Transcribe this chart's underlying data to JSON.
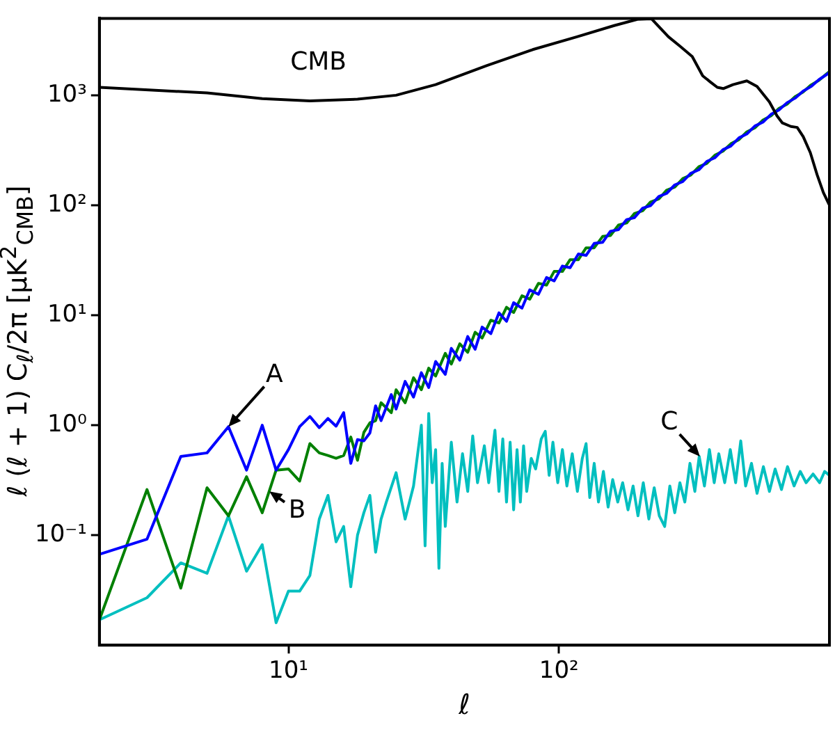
{
  "chart_data": {
    "type": "line",
    "xlabel": "ℓ",
    "ylabel": "ℓ (ℓ + 1) C$_{ℓ}$/2π [μK$^{2}$$_{CMB}$]",
    "xlim": [
      2,
      1000
    ],
    "ylim": [
      0.01,
      5000
    ],
    "xticks": [
      {
        "value": 10,
        "label": "10¹"
      },
      {
        "value": 100,
        "label": "10²"
      }
    ],
    "yticks": [
      {
        "value": 0.1,
        "label": "10⁻¹"
      },
      {
        "value": 1,
        "label": "10⁰"
      },
      {
        "value": 10,
        "label": "10¹"
      },
      {
        "value": 100,
        "label": "10²"
      },
      {
        "value": 1000,
        "label": "10³"
      }
    ],
    "log": "xy",
    "grid": false,
    "legend": false,
    "marker": "none",
    "line_style": "solid",
    "annotations": [
      "CMB",
      {
        "text": "A",
        "x": 6,
        "y": 0.97
      },
      {
        "text": "B",
        "x": 8.5,
        "y": 0.25
      },
      {
        "text": "C",
        "x": 332,
        "y": 0.52
      }
    ],
    "series": [
      {
        "color": "#000000",
        "x": [
          2,
          5,
          8,
          12,
          18,
          25,
          35,
          54,
          80,
          116,
          160,
          195,
          220,
          254,
          280,
          311,
          340,
          363,
          385,
          405,
          440,
          495,
          540,
          600,
          640,
          670,
          720,
          760,
          800,
          850,
          900,
          950,
          1000
        ],
        "values": [
          1180,
          1050,
          930,
          890,
          920,
          1000,
          1250,
          1860,
          2600,
          3390,
          4300,
          4900,
          4950,
          3400,
          2800,
          2250,
          1500,
          1320,
          1180,
          1150,
          1250,
          1350,
          1200,
          870,
          650,
          560,
          520,
          510,
          420,
          300,
          190,
          130,
          100
        ]
      },
      {
        "color": "#0000ff",
        "x": [
          2,
          3,
          4,
          5,
          6,
          7,
          8,
          9,
          10,
          11,
          12,
          13,
          14,
          15,
          16,
          17,
          18,
          19,
          20,
          21,
          22,
          24,
          25,
          27,
          29,
          31,
          33,
          35,
          38,
          40,
          43,
          46,
          49,
          52,
          56,
          60,
          64,
          68,
          73,
          78,
          84,
          90,
          96,
          103,
          110,
          118,
          126,
          135,
          145,
          155,
          166,
          178,
          190,
          204,
          218,
          234,
          250,
          268,
          287,
          307,
          329,
          352,
          377,
          404,
          432,
          463,
          495,
          530,
          568,
          608,
          651,
          697,
          746,
          799,
          855,
          916,
          980,
          1000
        ],
        "values": [
          0.067,
          0.092,
          0.52,
          0.56,
          0.97,
          0.39,
          1.0,
          0.39,
          0.6,
          0.97,
          1.2,
          0.95,
          1.15,
          0.98,
          1.3,
          0.45,
          0.74,
          0.72,
          0.85,
          1.5,
          1.1,
          1.9,
          1.4,
          2.5,
          1.8,
          3.0,
          2.2,
          3.8,
          2.9,
          5.0,
          3.9,
          6.4,
          4.9,
          7.8,
          6.8,
          10.5,
          8.8,
          13,
          11.6,
          17,
          15.5,
          22,
          20.5,
          28,
          27,
          36,
          35,
          45,
          46,
          58,
          60,
          74,
          77,
          94,
          99,
          120,
          128,
          153,
          164,
          195,
          210,
          250,
          270,
          320,
          345,
          410,
          445,
          525,
          570,
          670,
          735,
          855,
          940,
          1090,
          1200,
          1390,
          1550,
          1620
        ]
      },
      {
        "color": "#008000",
        "x": [
          2,
          3,
          4,
          5,
          6,
          7,
          8,
          9,
          10,
          11,
          12,
          13,
          14,
          15,
          16,
          17,
          18,
          19,
          20,
          21,
          22,
          24,
          25,
          27,
          29,
          31,
          33,
          35,
          38,
          40,
          43,
          46,
          49,
          52,
          56,
          60,
          64,
          68,
          73,
          78,
          84,
          90,
          96,
          103,
          110,
          118,
          126,
          135,
          145,
          155,
          166,
          178,
          190,
          204,
          218,
          234,
          250,
          268,
          287,
          307,
          329,
          352,
          377,
          404,
          432,
          463,
          495,
          530,
          568,
          608,
          651,
          697,
          746,
          799,
          855,
          916,
          980,
          1000
        ],
        "values": [
          0.017,
          0.26,
          0.033,
          0.27,
          0.15,
          0.34,
          0.16,
          0.39,
          0.4,
          0.31,
          0.68,
          0.56,
          0.53,
          0.5,
          0.53,
          0.78,
          0.48,
          0.86,
          1.05,
          1.1,
          1.6,
          1.3,
          2.1,
          1.6,
          2.7,
          2.1,
          3.3,
          2.8,
          4.5,
          3.6,
          5.5,
          4.6,
          7.0,
          6.2,
          9.0,
          8.5,
          11.8,
          10.6,
          15,
          14,
          19.5,
          18.8,
          25,
          25,
          32,
          32,
          41,
          41,
          52,
          53,
          66,
          69,
          84,
          89,
          107,
          114,
          137,
          146,
          175,
          188,
          224,
          240,
          285,
          310,
          362,
          395,
          465,
          505,
          595,
          650,
          760,
          830,
          970,
          1070,
          1240,
          1370,
          1580,
          1640
        ]
      },
      {
        "color": "#00bfbf",
        "x": [
          2,
          3,
          4,
          5,
          6,
          7,
          8,
          9,
          10,
          11,
          12,
          13,
          14,
          15,
          16,
          17,
          18,
          19,
          20,
          21,
          22,
          23,
          25,
          27,
          29,
          31,
          32,
          33,
          34,
          35,
          36,
          37,
          38,
          40,
          42,
          44,
          46,
          48,
          50,
          53,
          55,
          58,
          60,
          62,
          64,
          66,
          68,
          70,
          72,
          74,
          76,
          79,
          82,
          86,
          89,
          92,
          95,
          99,
          103,
          107,
          112,
          117,
          122,
          126,
          130,
          135,
          140,
          146,
          152,
          158,
          165,
          172,
          180,
          188,
          196,
          205,
          215,
          225,
          235,
          246,
          257,
          268,
          280,
          292,
          305,
          318,
          330,
          345,
          360,
          375,
          390,
          410,
          430,
          450,
          470,
          490,
          515,
          540,
          570,
          600,
          630,
          665,
          700,
          740,
          780,
          820,
          870,
          920,
          960,
          1000
        ],
        "values": [
          0.017,
          0.027,
          0.056,
          0.045,
          0.15,
          0.047,
          0.082,
          0.016,
          0.031,
          0.031,
          0.043,
          0.14,
          0.23,
          0.087,
          0.12,
          0.034,
          0.1,
          0.16,
          0.23,
          0.07,
          0.14,
          0.2,
          0.37,
          0.14,
          0.28,
          1.0,
          0.08,
          1.28,
          0.3,
          0.6,
          0.05,
          0.45,
          0.12,
          0.7,
          0.2,
          0.55,
          0.25,
          0.8,
          0.3,
          0.65,
          0.3,
          0.9,
          0.25,
          0.75,
          0.2,
          0.7,
          0.17,
          0.6,
          0.2,
          0.65,
          0.25,
          0.5,
          0.4,
          0.75,
          0.88,
          0.35,
          0.7,
          0.3,
          0.6,
          0.28,
          0.55,
          0.25,
          0.5,
          0.68,
          0.22,
          0.45,
          0.2,
          0.38,
          0.18,
          0.32,
          0.2,
          0.3,
          0.17,
          0.28,
          0.15,
          0.3,
          0.14,
          0.27,
          0.15,
          0.12,
          0.28,
          0.16,
          0.3,
          0.2,
          0.45,
          0.25,
          0.52,
          0.28,
          0.6,
          0.3,
          0.55,
          0.3,
          0.6,
          0.3,
          0.72,
          0.28,
          0.45,
          0.24,
          0.42,
          0.25,
          0.4,
          0.26,
          0.42,
          0.28,
          0.38,
          0.3,
          0.36,
          0.3,
          0.38,
          0.35
        ]
      }
    ]
  }
}
